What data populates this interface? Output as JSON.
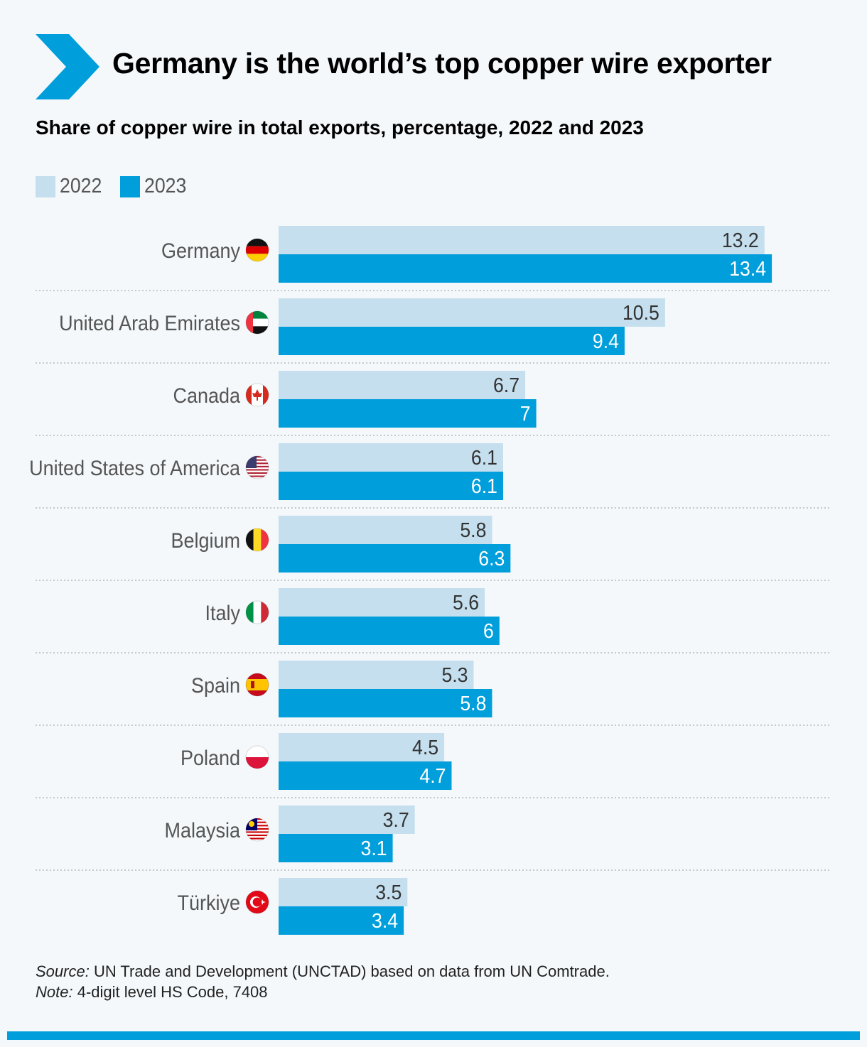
{
  "title": "Germany is the world’s top copper wire exporter",
  "subtitle": "Share of copper wire in total exports, percentage, 2022 and 2023",
  "colors": {
    "brand": "#009edb",
    "light": "#c5dfee",
    "text": "#000000",
    "muted": "#555555",
    "divider": "#bbbbbb"
  },
  "legend": [
    {
      "label": "2022",
      "color": "#c5dfee"
    },
    {
      "label": "2023",
      "color": "#009edb"
    }
  ],
  "chart_data": {
    "type": "bar",
    "orientation": "horizontal",
    "categories": [
      "Germany",
      "United Arab Emirates",
      "Canada",
      "United States of America",
      "Belgium",
      "Italy",
      "Spain",
      "Poland",
      "Malaysia",
      "Türkiye"
    ],
    "flags": [
      "germany-flag-icon",
      "uae-flag-icon",
      "canada-flag-icon",
      "usa-flag-icon",
      "belgium-flag-icon",
      "italy-flag-icon",
      "spain-flag-icon",
      "poland-flag-icon",
      "malaysia-flag-icon",
      "turkiye-flag-icon"
    ],
    "series": [
      {
        "name": "2022",
        "color": "#c5dfee",
        "values": [
          13.2,
          10.5,
          6.7,
          6.1,
          5.8,
          5.6,
          5.3,
          4.5,
          3.7,
          3.5
        ]
      },
      {
        "name": "2023",
        "color": "#009edb",
        "values": [
          13.4,
          9.4,
          7,
          6.1,
          6.3,
          6,
          5.8,
          4.7,
          3.1,
          3.4
        ]
      }
    ],
    "xlim": [
      0,
      15
    ],
    "data_labels": true,
    "grid": false,
    "legend_position": "top-left"
  },
  "source": {
    "lead": "Source:",
    "text": " UN Trade and Development (UNCTAD) based on data from UN Comtrade."
  },
  "note": {
    "lead": "Note:",
    "text": " 4-digit level HS Code, 7408"
  }
}
